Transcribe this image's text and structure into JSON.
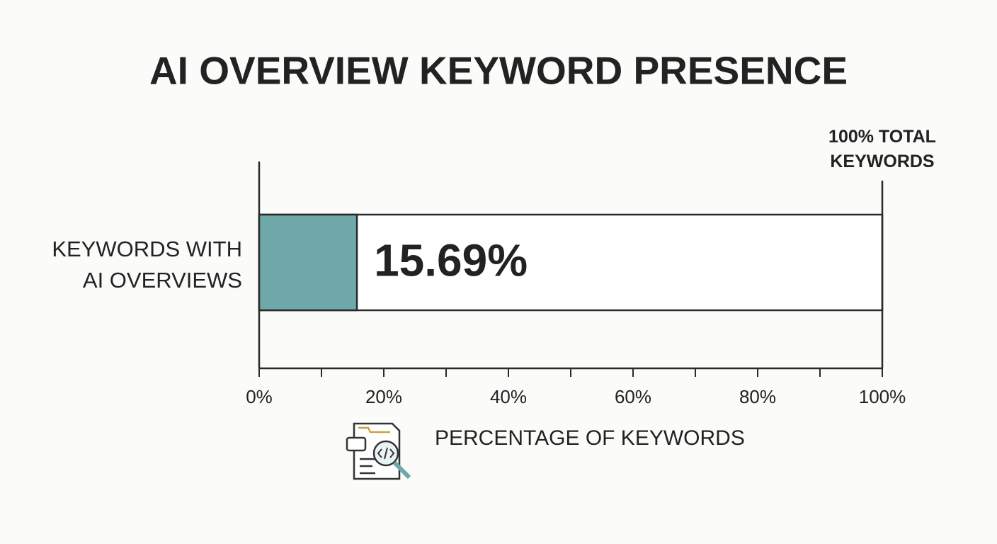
{
  "chart_data": {
    "type": "hbar",
    "title": "AI OVERVIEW KEYWORD PRESENCE",
    "categories": [
      "KEYWORDS WITH AI OVERVIEWS"
    ],
    "values": [
      15.69
    ],
    "value_labels": [
      "15.69%"
    ],
    "color": "#6fa8a8",
    "xlabel": "PERCENTAGE OF KEYWORDS",
    "annotation": "100% TOTAL KEYWORDS",
    "xlim": [
      0,
      100
    ],
    "xticks": [
      {
        "value": 0,
        "label": "0%"
      },
      {
        "value": 20,
        "label": "20%"
      },
      {
        "value": 40,
        "label": "40%"
      },
      {
        "value": 60,
        "label": "60%"
      },
      {
        "value": 80,
        "label": "80%"
      },
      {
        "value": 100,
        "label": "100%"
      }
    ],
    "minor_xticks": [
      10,
      30,
      50,
      70,
      90
    ]
  }
}
